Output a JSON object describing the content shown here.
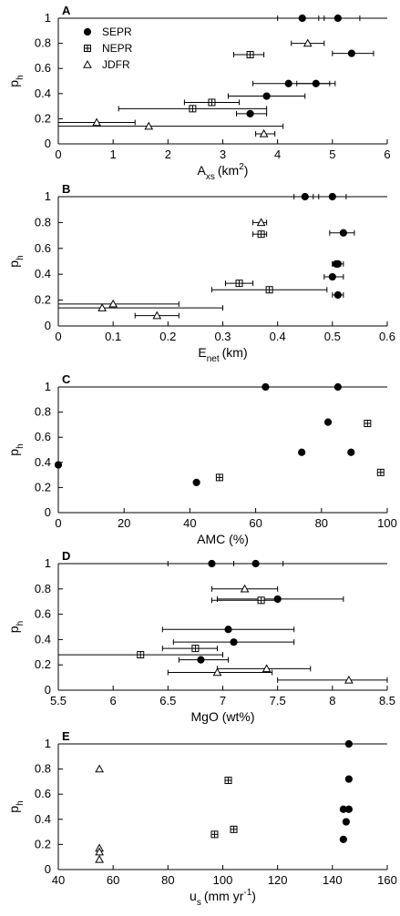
{
  "chart_data": [
    {
      "panel": "A",
      "type": "scatter",
      "xlabel": "A",
      "xlabel_sub": "xs",
      "xlabel_unit": "(km",
      "xlabel_sup": "2",
      "xlabel_end": ")",
      "ylabel": "p",
      "ylabel_sub": "h",
      "xlim": [
        0,
        6
      ],
      "ylim": [
        0,
        1
      ],
      "xticks": [
        "0",
        "1",
        "2",
        "3",
        "4",
        "5",
        "6"
      ],
      "yticks": [
        "0",
        "0.2",
        "0.4",
        "0.6",
        "0.8",
        "1"
      ],
      "legend": [
        {
          "marker": "circle",
          "label": "SEPR"
        },
        {
          "marker": "square",
          "label": "NEPR"
        },
        {
          "marker": "triangle",
          "label": "JDFR"
        }
      ],
      "series": [
        {
          "marker": "circle",
          "points": [
            {
              "x": 4.45,
              "y": 1.0,
              "xerr": [
                4.0,
                4.85
              ]
            },
            {
              "x": 5.1,
              "y": 1.0,
              "xerr": [
                4.75,
                5.5
              ]
            },
            {
              "x": 5.35,
              "y": 0.72,
              "xerr": [
                5.0,
                5.75
              ]
            },
            {
              "x": 4.2,
              "y": 0.48,
              "xerr": [
                3.55,
                4.95
              ]
            },
            {
              "x": 4.7,
              "y": 0.48,
              "xerr": [
                4.35,
                5.05
              ]
            },
            {
              "x": 3.8,
              "y": 0.38,
              "xerr": [
                3.1,
                4.5
              ]
            },
            {
              "x": 3.5,
              "y": 0.24,
              "xerr": [
                3.25,
                3.8
              ]
            }
          ]
        },
        {
          "marker": "square",
          "points": [
            {
              "x": 3.5,
              "y": 0.71,
              "xerr": [
                3.2,
                3.75
              ]
            },
            {
              "x": 2.8,
              "y": 0.33,
              "xerr": [
                2.3,
                3.3
              ]
            },
            {
              "x": 2.45,
              "y": 0.28,
              "xerr": [
                1.1,
                3.8
              ]
            }
          ]
        },
        {
          "marker": "triangle",
          "points": [
            {
              "x": 4.55,
              "y": 0.8,
              "xerr": [
                4.25,
                4.85
              ]
            },
            {
              "x": 0.7,
              "y": 0.17,
              "xerr": [
                0.0,
                1.4
              ]
            },
            {
              "x": 1.65,
              "y": 0.14,
              "xerr": [
                0.0,
                4.1
              ]
            },
            {
              "x": 3.75,
              "y": 0.08,
              "xerr": [
                3.6,
                3.95
              ]
            }
          ]
        }
      ]
    },
    {
      "panel": "B",
      "type": "scatter",
      "xlabel": "E",
      "xlabel_sub": "net",
      "xlabel_unit": "(km)",
      "xlabel_sup": "",
      "xlabel_end": "",
      "ylabel": "p",
      "ylabel_sub": "h",
      "xlim": [
        0,
        0.6
      ],
      "ylim": [
        0,
        1
      ],
      "xticks": [
        "0",
        "0.1",
        "0.2",
        "0.3",
        "0.4",
        "0.5",
        "0.6"
      ],
      "yticks": [
        "0",
        "0.2",
        "0.4",
        "0.6",
        "0.8",
        "1"
      ],
      "series": [
        {
          "marker": "circle",
          "points": [
            {
              "x": 0.45,
              "y": 1.0,
              "xerr": [
                0.43,
                0.465
              ]
            },
            {
              "x": 0.5,
              "y": 1.0,
              "xerr": [
                0.475,
                0.525
              ]
            },
            {
              "x": 0.52,
              "y": 0.72,
              "xerr": [
                0.495,
                0.54
              ]
            },
            {
              "x": 0.507,
              "y": 0.48,
              "xerr": [
                0.5,
                0.515
              ]
            },
            {
              "x": 0.51,
              "y": 0.48,
              "xerr": [
                0.5,
                0.52
              ]
            },
            {
              "x": 0.5,
              "y": 0.38,
              "xerr": [
                0.485,
                0.52
              ]
            },
            {
              "x": 0.51,
              "y": 0.24,
              "xerr": [
                0.5,
                0.52
              ]
            }
          ]
        },
        {
          "marker": "square",
          "points": [
            {
              "x": 0.37,
              "y": 0.71,
              "xerr": [
                0.355,
                0.38
              ]
            },
            {
              "x": 0.33,
              "y": 0.33,
              "xerr": [
                0.305,
                0.355
              ]
            },
            {
              "x": 0.385,
              "y": 0.28,
              "xerr": [
                0.28,
                0.49
              ]
            }
          ]
        },
        {
          "marker": "triangle",
          "points": [
            {
              "x": 0.37,
              "y": 0.8,
              "xerr": [
                0.355,
                0.38
              ]
            },
            {
              "x": 0.1,
              "y": 0.17,
              "xerr": [
                0.0,
                0.22
              ]
            },
            {
              "x": 0.08,
              "y": 0.14,
              "xerr": [
                0.0,
                0.3
              ]
            },
            {
              "x": 0.18,
              "y": 0.08,
              "xerr": [
                0.14,
                0.22
              ]
            }
          ]
        }
      ]
    },
    {
      "panel": "C",
      "type": "scatter",
      "xlabel": "AMC (%)",
      "xlabel_sub": "",
      "xlabel_unit": "",
      "xlabel_sup": "",
      "xlabel_end": "",
      "ylabel": "p",
      "ylabel_sub": "h",
      "xlim": [
        0,
        100
      ],
      "ylim": [
        0,
        1
      ],
      "xticks": [
        "0",
        "20",
        "40",
        "60",
        "80",
        "100"
      ],
      "yticks": [
        "0",
        "0.2",
        "0.4",
        "0.6",
        "0.8",
        "1"
      ],
      "series": [
        {
          "marker": "circle",
          "points": [
            {
              "x": 0,
              "y": 0.38
            },
            {
              "x": 42,
              "y": 0.24
            },
            {
              "x": 63,
              "y": 1.0
            },
            {
              "x": 74,
              "y": 0.48
            },
            {
              "x": 82,
              "y": 0.72
            },
            {
              "x": 85,
              "y": 1.0
            },
            {
              "x": 89,
              "y": 0.48
            }
          ]
        },
        {
          "marker": "square",
          "points": [
            {
              "x": 49,
              "y": 0.28
            },
            {
              "x": 94,
              "y": 0.71
            },
            {
              "x": 98,
              "y": 0.32
            }
          ]
        }
      ]
    },
    {
      "panel": "D",
      "type": "scatter",
      "xlabel": "MgO (wt%)",
      "xlabel_sub": "",
      "xlabel_unit": "",
      "xlabel_sup": "",
      "xlabel_end": "",
      "ylabel": "p",
      "ylabel_sub": "h",
      "xlim": [
        5.5,
        8.5
      ],
      "ylim": [
        0,
        1
      ],
      "xticks": [
        "5.5",
        "6",
        "6.5",
        "7",
        "7.5",
        "8",
        "8.5"
      ],
      "yticks": [
        "0",
        "0.2",
        "0.4",
        "0.6",
        "0.8",
        "1"
      ],
      "series": [
        {
          "marker": "circle",
          "points": [
            {
              "x": 6.9,
              "y": 1.0,
              "xerr": [
                6.5,
                7.3
              ]
            },
            {
              "x": 7.3,
              "y": 1.0,
              "xerr": [
                7.1,
                7.55
              ]
            },
            {
              "x": 7.5,
              "y": 0.72,
              "xerr": [
                6.95,
                8.1
              ]
            },
            {
              "x": 7.05,
              "y": 0.48,
              "xerr": [
                6.45,
                7.65
              ]
            },
            {
              "x": 7.1,
              "y": 0.38,
              "xerr": [
                6.55,
                7.65
              ]
            },
            {
              "x": 6.8,
              "y": 0.24,
              "xerr": [
                6.6,
                7.05
              ]
            }
          ]
        },
        {
          "marker": "square",
          "points": [
            {
              "x": 7.35,
              "y": 0.71,
              "xerr": [
                6.9,
                7.5
              ]
            },
            {
              "x": 6.75,
              "y": 0.33,
              "xerr": [
                6.45,
                6.95
              ]
            },
            {
              "x": 6.25,
              "y": 0.28,
              "xerr": [
                5.5,
                7.0
              ]
            }
          ]
        },
        {
          "marker": "triangle",
          "points": [
            {
              "x": 7.2,
              "y": 0.8,
              "xerr": [
                6.9,
                7.5
              ]
            },
            {
              "x": 7.4,
              "y": 0.17,
              "xerr": [
                6.95,
                7.8
              ]
            },
            {
              "x": 6.95,
              "y": 0.14,
              "xerr": [
                6.5,
                7.45
              ]
            },
            {
              "x": 8.15,
              "y": 0.08,
              "xerr": [
                7.5,
                8.5
              ]
            }
          ]
        }
      ]
    },
    {
      "panel": "E",
      "type": "scatter",
      "xlabel": "u",
      "xlabel_sub": "s",
      "xlabel_unit": "(mm yr",
      "xlabel_sup": "-1",
      "xlabel_end": ")",
      "ylabel": "p",
      "ylabel_sub": "h",
      "xlim": [
        40,
        160
      ],
      "ylim": [
        0,
        1
      ],
      "xticks": [
        "40",
        "60",
        "80",
        "100",
        "120",
        "140",
        "160"
      ],
      "yticks": [
        "0",
        "0.2",
        "0.4",
        "0.6",
        "0.8",
        "1"
      ],
      "series": [
        {
          "marker": "circle",
          "points": [
            {
              "x": 146,
              "y": 1.0
            },
            {
              "x": 146,
              "y": 0.72
            },
            {
              "x": 144,
              "y": 0.48
            },
            {
              "x": 146,
              "y": 0.48
            },
            {
              "x": 145,
              "y": 0.38
            },
            {
              "x": 144,
              "y": 0.24
            }
          ]
        },
        {
          "marker": "square",
          "points": [
            {
              "x": 102,
              "y": 0.71
            },
            {
              "x": 104,
              "y": 0.32
            },
            {
              "x": 97,
              "y": 0.28
            }
          ]
        },
        {
          "marker": "triangle",
          "points": [
            {
              "x": 55,
              "y": 0.8
            },
            {
              "x": 55,
              "y": 0.17
            },
            {
              "x": 55,
              "y": 0.14
            },
            {
              "x": 55,
              "y": 0.08
            }
          ]
        }
      ]
    }
  ]
}
